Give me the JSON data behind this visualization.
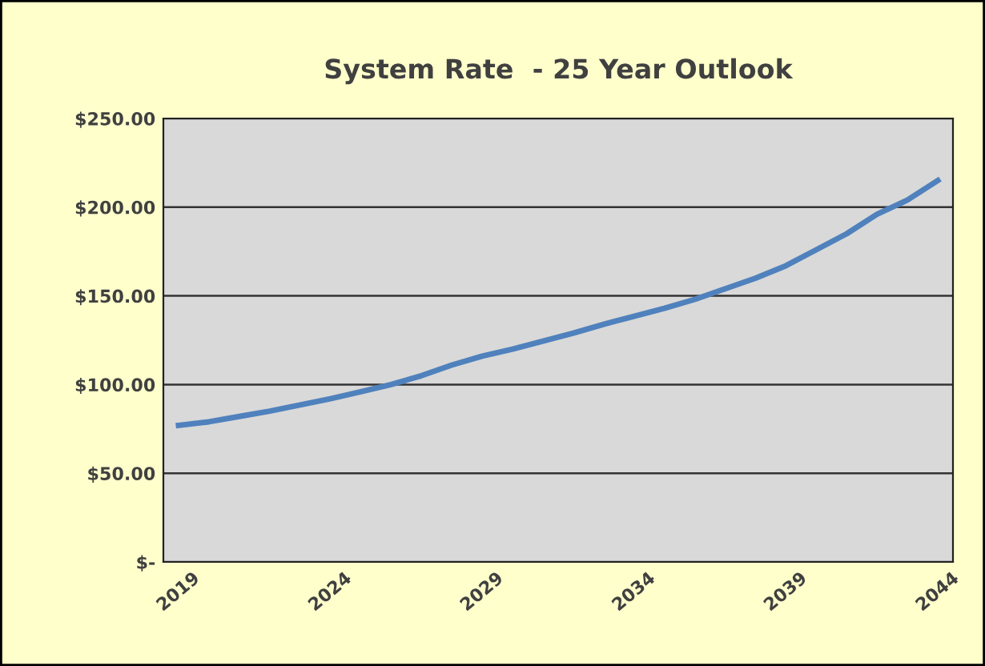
{
  "chart_data": {
    "type": "line",
    "title": "System Rate  - 25 Year Outlook",
    "categories": [
      "2019",
      null,
      null,
      null,
      null,
      "2024",
      null,
      null,
      null,
      null,
      "2029",
      null,
      null,
      null,
      null,
      "2034",
      null,
      null,
      null,
      null,
      "2039",
      null,
      null,
      null,
      null,
      "2044"
    ],
    "series": [
      {
        "color": "#4f81bd",
        "values": [
          77,
          79,
          82,
          85,
          88.5,
          92,
          96,
          100,
          105,
          111,
          116,
          120,
          124.5,
          129,
          134,
          138.5,
          143,
          148,
          154,
          160,
          167,
          176,
          185,
          196,
          204,
          215
        ]
      }
    ],
    "ylim": [
      0,
      250
    ],
    "yticks": [
      {
        "value": 0,
        "label": "$-"
      },
      {
        "value": 50,
        "label": "$50.00"
      },
      {
        "value": 100,
        "label": "$100.00"
      },
      {
        "value": 150,
        "label": "$150.00"
      },
      {
        "value": 200,
        "label": "$200.00"
      },
      {
        "value": 250,
        "label": "$250.00"
      }
    ],
    "grid": "y",
    "legend": false,
    "marker": "none",
    "line_style": "solid"
  }
}
